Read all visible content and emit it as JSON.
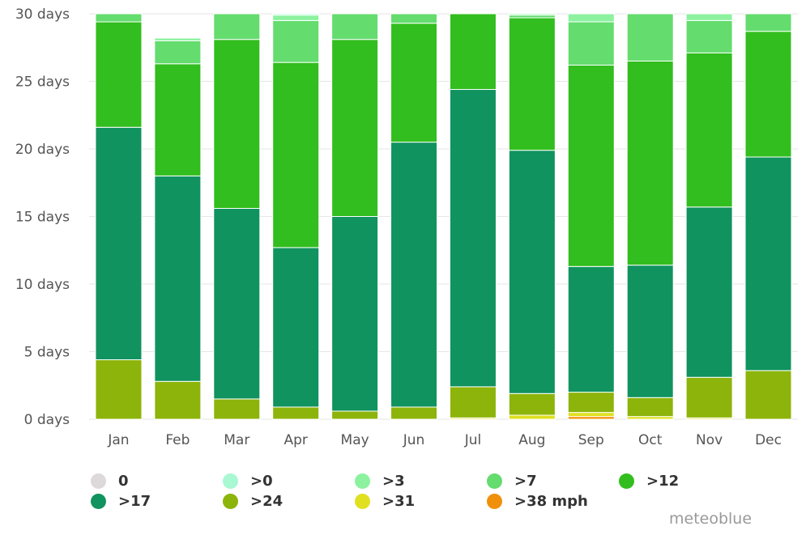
{
  "chart_data": {
    "type": "bar",
    "stacked": true,
    "categories": [
      "Jan",
      "Feb",
      "Mar",
      "Apr",
      "May",
      "Jun",
      "Jul",
      "Aug",
      "Sep",
      "Oct",
      "Nov",
      "Dec"
    ],
    "y_ticks": [
      "0 days",
      "5 days",
      "10 days",
      "15 days",
      "20 days",
      "25 days",
      "30 days"
    ],
    "ylim": [
      0,
      30
    ],
    "grid": true,
    "legend_position": "bottom",
    "series": [
      {
        "name": ">38 mph",
        "color": "#f0900a",
        "values": [
          0,
          0,
          0,
          0,
          0,
          0,
          0,
          0,
          0.2,
          0,
          0,
          0
        ]
      },
      {
        "name": ">31",
        "color": "#e0e020",
        "values": [
          0,
          0,
          0,
          0,
          0,
          0,
          0.1,
          0.3,
          0.3,
          0.2,
          0.1,
          0
        ]
      },
      {
        "name": ">24",
        "color": "#8cb40a",
        "values": [
          4.4,
          2.8,
          1.5,
          0.9,
          0.6,
          0.9,
          2.3,
          1.6,
          1.5,
          1.4,
          3.0,
          3.6
        ]
      },
      {
        "name": ">17",
        "color": "#10935f",
        "values": [
          17.2,
          15.2,
          14.1,
          11.8,
          14.4,
          19.6,
          22.0,
          18.0,
          9.3,
          9.8,
          12.6,
          15.8
        ]
      },
      {
        "name": ">12",
        "color": "#32be1e",
        "values": [
          7.8,
          8.3,
          12.5,
          13.7,
          13.1,
          8.8,
          5.6,
          9.8,
          14.9,
          15.1,
          11.4,
          9.3
        ]
      },
      {
        "name": ">7",
        "color": "#64dc6e",
        "values": [
          0.6,
          1.7,
          2.0,
          3.1,
          1.9,
          0.8,
          0,
          0.2,
          3.2,
          3.5,
          2.4,
          1.3
        ]
      },
      {
        "name": ">3",
        "color": "#8cf2a0",
        "values": [
          0,
          0.2,
          0,
          0.4,
          0,
          0,
          0,
          0.1,
          0.8,
          0,
          0.5,
          0
        ]
      },
      {
        "name": ">0",
        "color": "#a8f8d2",
        "values": [
          0,
          0,
          0,
          0.1,
          0,
          0,
          0,
          0,
          0,
          0,
          0,
          0
        ]
      },
      {
        "name": "0",
        "color": "#ddd9da",
        "values": [
          0,
          0,
          0,
          0,
          0,
          0,
          0,
          0,
          0,
          0,
          0,
          0
        ]
      }
    ]
  },
  "legend": [
    {
      "label": "0",
      "color": "#ddd9da"
    },
    {
      "label": ">0",
      "color": "#a8f8d2"
    },
    {
      "label": ">3",
      "color": "#8cf2a0"
    },
    {
      "label": ">7",
      "color": "#64dc6e"
    },
    {
      "label": ">12",
      "color": "#32be1e"
    },
    {
      "label": ">17",
      "color": "#10935f"
    },
    {
      "label": ">24",
      "color": "#8cb40a"
    },
    {
      "label": ">31",
      "color": "#e0e020"
    },
    {
      "label": ">38 mph",
      "color": "#f0900a"
    }
  ],
  "credit": "meteoblue"
}
